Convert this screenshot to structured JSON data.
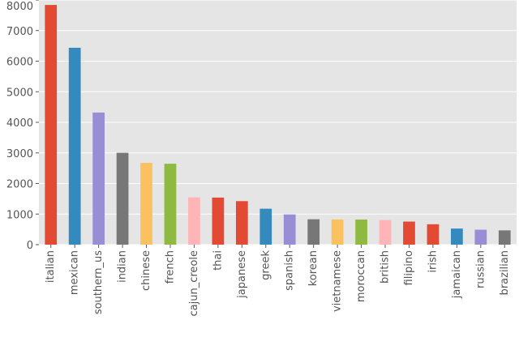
{
  "chart_data": {
    "type": "bar",
    "categories": [
      "italian",
      "mexican",
      "southern_us",
      "indian",
      "chinese",
      "french",
      "cajun_creole",
      "thai",
      "japanese",
      "greek",
      "spanish",
      "korean",
      "vietnamese",
      "moroccan",
      "british",
      "filipino",
      "irish",
      "jamaican",
      "russian",
      "brazilian"
    ],
    "values": [
      7838,
      6438,
      4320,
      3003,
      2673,
      2646,
      1546,
      1539,
      1423,
      1175,
      989,
      830,
      825,
      821,
      804,
      755,
      667,
      526,
      489,
      467
    ],
    "colors": [
      "#E24A33",
      "#348ABD",
      "#988ED5",
      "#777777",
      "#FBC15E",
      "#8EBA42",
      "#FFB5B8",
      "#E24A33",
      "#E24A33",
      "#348ABD",
      "#988ED5",
      "#777777",
      "#FBC15E",
      "#8EBA42",
      "#FFB5B8",
      "#E24A33",
      "#E24A33",
      "#348ABD",
      "#988ED5",
      "#777777"
    ],
    "title": "",
    "xlabel": "",
    "ylabel": "",
    "ylim": [
      0,
      8000
    ],
    "yticks": [
      0,
      1000,
      2000,
      3000,
      4000,
      5000,
      6000,
      7000,
      8000
    ],
    "grid": true,
    "background": "#E5E5E5",
    "grid_color": "#FFFFFF",
    "legend": "none"
  }
}
